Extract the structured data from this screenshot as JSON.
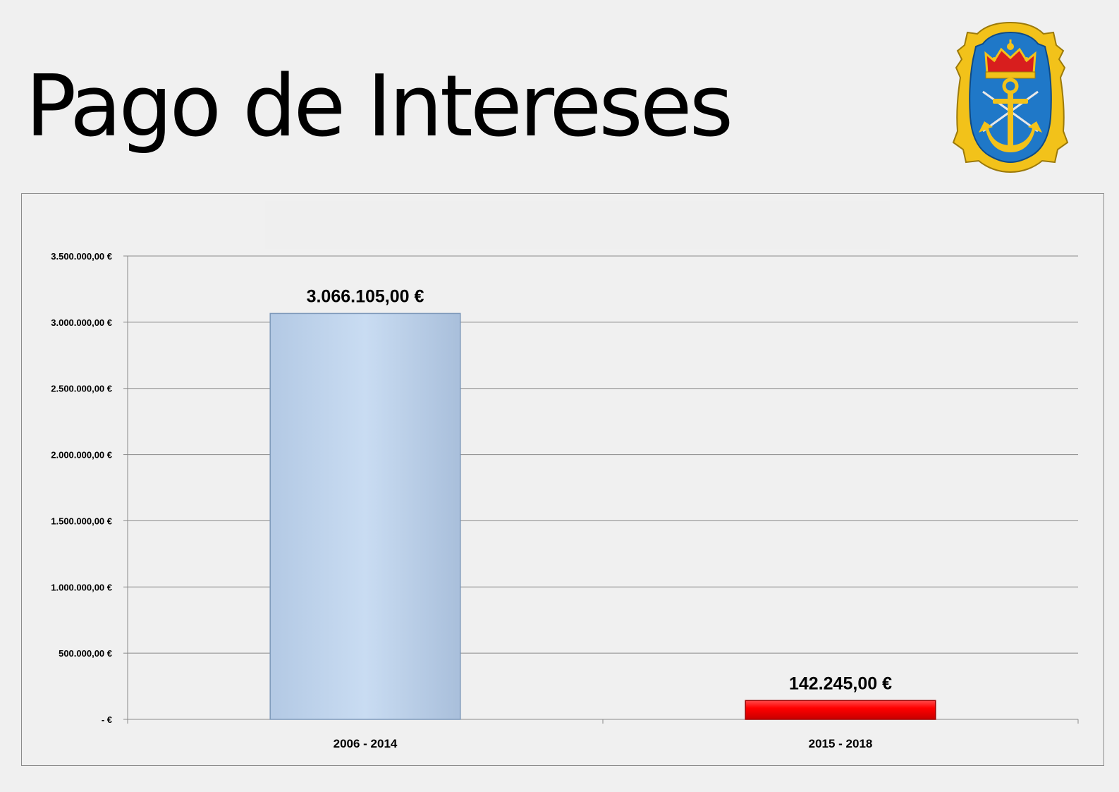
{
  "page": {
    "title": "Pago de Intereses"
  },
  "emblem": {
    "icon": "naval-anchor-crest-icon",
    "colors": {
      "shield": "#1f78c8",
      "border": "#f2c21a",
      "crown": "#d81e1e"
    }
  },
  "chart_data": {
    "type": "bar",
    "title": "",
    "xlabel": "",
    "ylabel": "",
    "categories": [
      "2006 - 2014",
      "2015 - 2018"
    ],
    "values": [
      3066105,
      142245
    ],
    "data_labels": [
      "3.066.105,00 €",
      "142.245,00 €"
    ],
    "bar_colors": [
      "#c5d9f1",
      "#ff0000"
    ],
    "ylim": [
      0,
      3500000
    ],
    "yticks": [
      0,
      500000,
      1000000,
      1500000,
      2000000,
      2500000,
      3000000,
      3500000
    ],
    "ytick_labels": [
      "-  €",
      "500.000,00 €",
      "1.000.000,00 €",
      "1.500.000,00 €",
      "2.000.000,00 €",
      "2.500.000,00 €",
      "3.000.000,00 €",
      "3.500.000,00 €"
    ],
    "grid": true,
    "legend": "none"
  }
}
